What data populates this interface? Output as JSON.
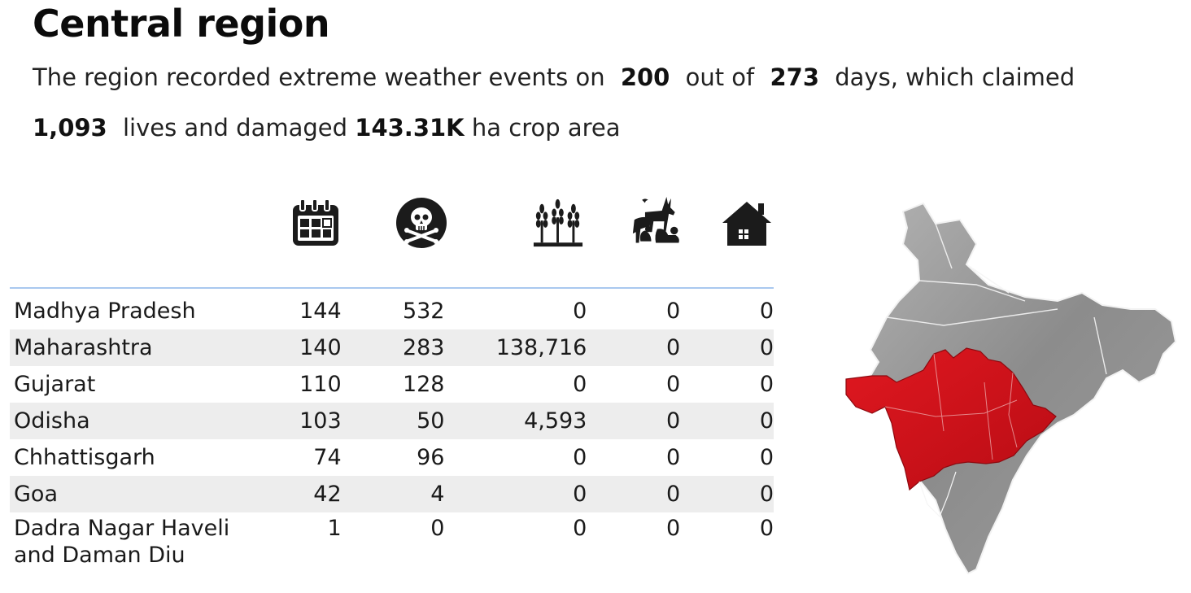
{
  "title": "Central region",
  "summary": {
    "prefix": "The region recorded extreme weather events on",
    "days_affected": "200",
    "out_of_label": "out of",
    "days_total": "273",
    "days_suffix": "days, which claimed",
    "lives_lost": "1,093",
    "lives_text": "lives and damaged",
    "crop_area": "143.31K",
    "crop_suffix": "ha crop area"
  },
  "column_icons": [
    "calendar-icon",
    "skull-crossbones-icon",
    "crop-wheat-icon",
    "animals-icon",
    "house-icon"
  ],
  "table": {
    "rows": [
      {
        "state": "Madhya Pradesh",
        "state_line2": "",
        "days": "144",
        "deaths": "532",
        "crop": "0",
        "animals": "0",
        "houses": "0"
      },
      {
        "state": "Maharashtra",
        "state_line2": "",
        "days": "140",
        "deaths": "283",
        "crop": "138,716",
        "animals": "0",
        "houses": "0"
      },
      {
        "state": "Gujarat",
        "state_line2": "",
        "days": "110",
        "deaths": "128",
        "crop": "0",
        "animals": "0",
        "houses": "0"
      },
      {
        "state": "Odisha",
        "state_line2": "",
        "days": "103",
        "deaths": "50",
        "crop": "4,593",
        "animals": "0",
        "houses": "0"
      },
      {
        "state": "Chhattisgarh",
        "state_line2": "",
        "days": "74",
        "deaths": "96",
        "crop": "0",
        "animals": "0",
        "houses": "0"
      },
      {
        "state": "Goa",
        "state_line2": "",
        "days": "42",
        "deaths": "4",
        "crop": "0",
        "animals": "0",
        "houses": "0"
      },
      {
        "state": "Dadra Nagar Haveli",
        "state_line2": "and Daman Diu",
        "days": "1",
        "deaths": "0",
        "crop": "0",
        "animals": "0",
        "houses": "0"
      }
    ]
  },
  "colors": {
    "highlight_region": "#d4111b",
    "map_base": "#8c8c8c",
    "row_alt": "#ededed",
    "header_rule": "#a9c8ef"
  }
}
